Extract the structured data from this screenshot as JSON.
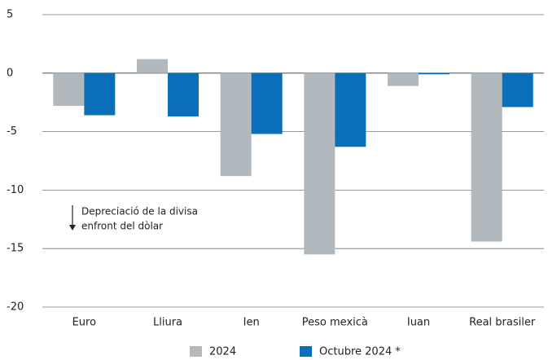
{
  "chart_data": {
    "type": "bar",
    "categories": [
      "Euro",
      "Lliura",
      "Ien",
      "Peso mexicà",
      "Iuan",
      "Real brasiler"
    ],
    "series": [
      {
        "name": "2024",
        "color": "#b2b9be",
        "values": [
          -2.8,
          1.2,
          -8.8,
          -15.5,
          -1.1,
          -14.4
        ]
      },
      {
        "name": "Octubre 2024 *",
        "color": "#0a6fb8",
        "values": [
          -3.6,
          -3.7,
          -5.2,
          -6.3,
          -0.1,
          -2.9
        ]
      }
    ],
    "ylim": [
      -20,
      5
    ],
    "yticks": [
      5,
      0,
      -5,
      -10,
      -15,
      -20
    ],
    "grid": true,
    "annotations": [
      "Depreciació de la divisa",
      "enfront del dòlar"
    ],
    "legend": "bottom"
  }
}
